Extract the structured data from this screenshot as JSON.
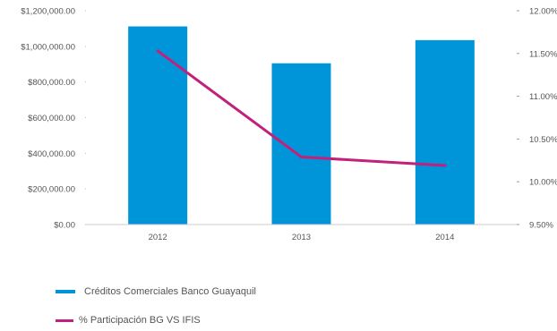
{
  "chart_data": {
    "type": "bar",
    "categories": [
      "2012",
      "2013",
      "2014"
    ],
    "series": [
      {
        "name": "Créditos Comerciales Banco Guayaquil",
        "type": "bar",
        "axis": "left",
        "color": "#0095d9",
        "values": [
          1112000,
          905000,
          1035000
        ]
      },
      {
        "name": "% Participación BG VS IFIS",
        "type": "line",
        "axis": "right",
        "color": "#c2207a",
        "values": [
          11.53,
          10.29,
          10.19
        ]
      }
    ],
    "y_left": {
      "min": 0,
      "max": 1200000,
      "ticks": [
        "$0.00",
        "$200,000.00",
        "$400,000.00",
        "$600,000.00",
        "$800,000.00",
        "$1,000,000.00",
        "$1,200,000.00"
      ]
    },
    "y_right": {
      "min": 9.5,
      "max": 12.0,
      "ticks": [
        "9.50%",
        "10.00%",
        "10.50%",
        "11.00%",
        "11.50%",
        "12.00%"
      ]
    },
    "grid": false,
    "legend_position": "bottom-left"
  }
}
